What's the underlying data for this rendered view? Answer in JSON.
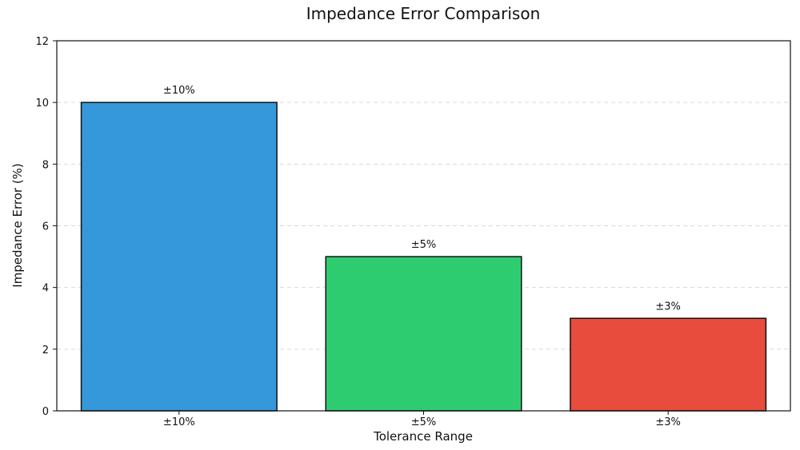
{
  "chart_data": {
    "type": "bar",
    "title": "Impedance Error Comparison",
    "xlabel": "Tolerance Range",
    "ylabel": "Impedance Error (%)",
    "categories": [
      "±10%",
      "±5%",
      "±3%"
    ],
    "values": [
      10,
      5,
      3
    ],
    "data_labels": [
      "±10%",
      "±5%",
      "±3%"
    ],
    "colors": [
      "#3498db",
      "#2ecc71",
      "#e74c3c"
    ],
    "ylim": [
      0,
      12
    ],
    "yticks": [
      0,
      2,
      4,
      6,
      8,
      10,
      12
    ],
    "grid": "y-dashed",
    "legend": "none"
  }
}
